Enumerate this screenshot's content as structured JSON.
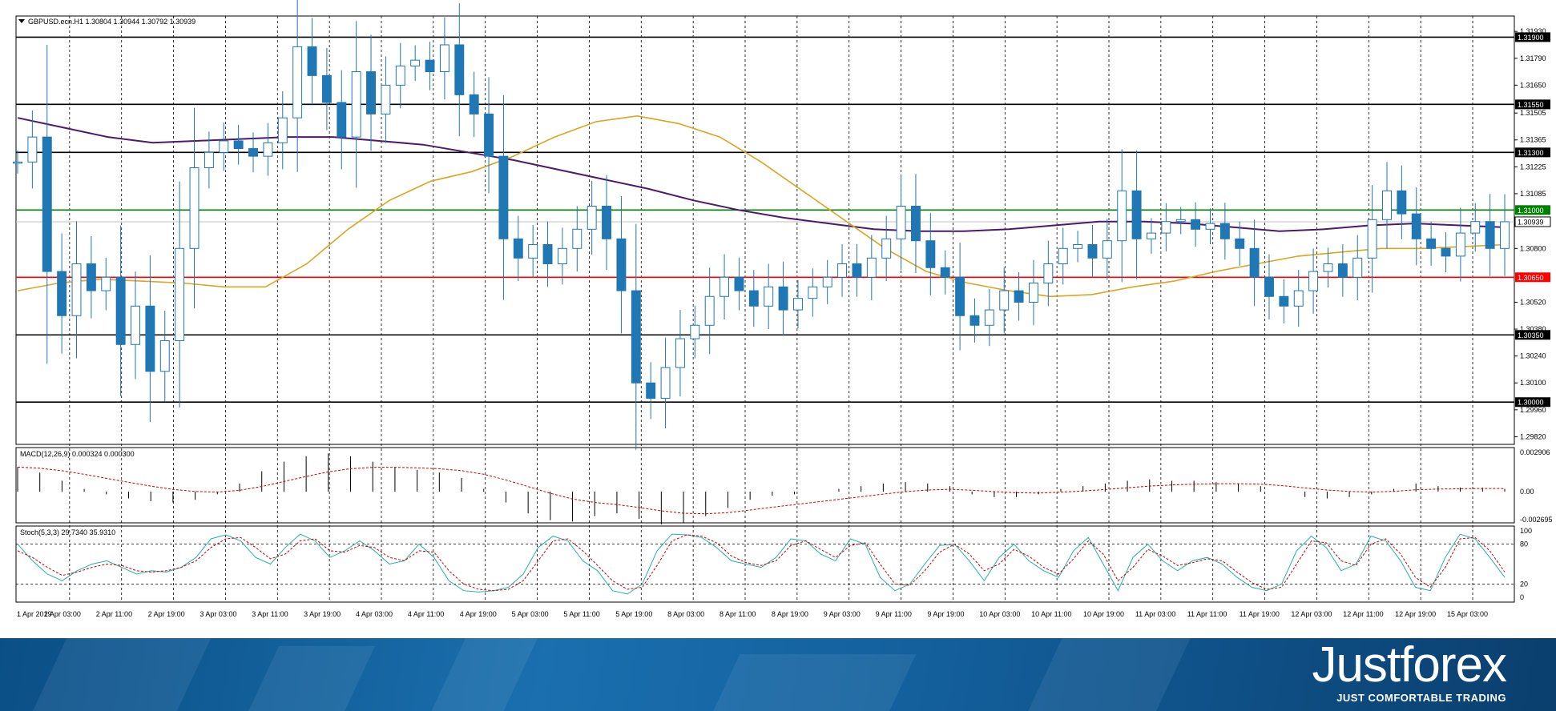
{
  "header": {
    "symbol_info": "GBPUSD.ecn.H1  1.30804 1.30944 1.30792 1.30939"
  },
  "macd": {
    "label": "MACD(12,26,9) 0.000324 0.000300",
    "axis": [
      "0.002906",
      "0.00",
      "-0.002695"
    ]
  },
  "stoch": {
    "label": "Stoch(5,3,3) 29.7340 35.9310",
    "axis": [
      "100",
      "80",
      "20",
      "0"
    ]
  },
  "brand": {
    "name": "Justforex",
    "tagline": "JUST COMFORTABLE TRADING"
  },
  "colors": {
    "bull": "#1f77b4",
    "ma_fast": "#daa520",
    "ma_slow": "#4b1a6b",
    "support": "#ff0000",
    "resistance_green": "#008000",
    "level": "#000000"
  },
  "chart_data": {
    "type": "candlestick",
    "symbol": "GBPUSD.ecn",
    "timeframe": "H1",
    "ohlc_last": {
      "open": 1.30804,
      "high": 1.30944,
      "low": 1.30792,
      "close": 1.30939
    },
    "x_tick_labels": [
      "1 Apr 2019",
      "2 Apr 03:00",
      "2 Apr 11:00",
      "2 Apr 19:00",
      "3 Apr 03:00",
      "3 Apr 11:00",
      "3 Apr 19:00",
      "4 Apr 03:00",
      "4 Apr 11:00",
      "4 Apr 19:00",
      "5 Apr 03:00",
      "5 Apr 11:00",
      "5 Apr 19:00",
      "8 Apr 03:00",
      "8 Apr 11:00",
      "8 Apr 19:00",
      "9 Apr 03:00",
      "9 Apr 11:00",
      "9 Apr 19:00",
      "10 Apr 03:00",
      "10 Apr 11:00",
      "10 Apr 19:00",
      "11 Apr 03:00",
      "11 Apr 11:00",
      "11 Apr 19:00",
      "12 Apr 03:00",
      "12 Apr 11:00",
      "12 Apr 19:00",
      "15 Apr 03:00"
    ],
    "y_tick_labels": [
      "1.31930",
      "1.31790",
      "1.31650",
      "1.31505",
      "1.31365",
      "1.31225",
      "1.31085",
      "1.30800",
      "1.30520",
      "1.30380",
      "1.30240",
      "1.30100",
      "1.29960",
      "1.29820"
    ],
    "ylim": [
      1.2978,
      1.3201
    ],
    "price_levels": [
      {
        "value": 1.319,
        "label": "1.31900",
        "color": "#000000"
      },
      {
        "value": 1.3155,
        "label": "1.31550",
        "color": "#000000"
      },
      {
        "value": 1.313,
        "label": "1.31300",
        "color": "#000000"
      },
      {
        "value": 1.31,
        "label": "1.31000",
        "color": "#008000"
      },
      {
        "value": 1.30939,
        "label": "1.30939",
        "color": "#c0c0c0"
      },
      {
        "value": 1.3065,
        "label": "1.30650",
        "color": "#ff0000"
      },
      {
        "value": 1.3035,
        "label": "1.30350",
        "color": "#000000"
      },
      {
        "value": 1.3,
        "label": "1.30000",
        "color": "#000000"
      }
    ],
    "close_path": [
      1.3125,
      1.3138,
      1.3068,
      1.3045,
      1.3072,
      1.3058,
      1.3065,
      1.303,
      1.305,
      1.3016,
      1.3032,
      1.308,
      1.3122,
      1.313,
      1.3136,
      1.3132,
      1.3128,
      1.3135,
      1.3148,
      1.3185,
      1.317,
      1.3156,
      1.3138,
      1.3172,
      1.315,
      1.3165,
      1.3175,
      1.3178,
      1.3172,
      1.3186,
      1.316,
      1.315,
      1.3128,
      1.3085,
      1.3075,
      1.3082,
      1.3072,
      1.308,
      1.309,
      1.3102,
      1.3085,
      1.3058,
      1.301,
      1.3002,
      1.3018,
      1.3033,
      1.304,
      1.3055,
      1.3065,
      1.3058,
      1.305,
      1.306,
      1.3048,
      1.3054,
      1.306,
      1.3065,
      1.3072,
      1.3065,
      1.3075,
      1.3085,
      1.3102,
      1.3084,
      1.307,
      1.3065,
      1.3045,
      1.304,
      1.3048,
      1.3058,
      1.3052,
      1.3062,
      1.3072,
      1.308,
      1.3082,
      1.3075,
      1.3084,
      1.311,
      1.3085,
      1.3088,
      1.3094,
      1.3095,
      1.309,
      1.3093,
      1.3085,
      1.308,
      1.3065,
      1.3055,
      1.305,
      1.3058,
      1.3068,
      1.3072,
      1.3065,
      1.3075,
      1.3095,
      1.311,
      1.3098,
      1.3085,
      1.308,
      1.3076,
      1.3088,
      1.3094,
      1.308,
      1.30939
    ],
    "ma_fast": [
      1.3058,
      1.3062,
      1.3064,
      1.3063,
      1.3062,
      1.306,
      1.306,
      1.3072,
      1.309,
      1.3105,
      1.3115,
      1.312,
      1.3128,
      1.3138,
      1.3146,
      1.3149,
      1.3145,
      1.3138,
      1.3125,
      1.311,
      1.3095,
      1.308,
      1.3068,
      1.3062,
      1.3058,
      1.3055,
      1.3056,
      1.306,
      1.3063,
      1.3068,
      1.3072,
      1.3076,
      1.3078,
      1.308,
      1.308,
      1.3081,
      1.3082
    ],
    "ma_slow": [
      1.3148,
      1.3143,
      1.3138,
      1.3135,
      1.3136,
      1.3137,
      1.3138,
      1.3138,
      1.3136,
      1.3134,
      1.313,
      1.3126,
      1.3121,
      1.3116,
      1.3111,
      1.3105,
      1.31,
      1.3096,
      1.3093,
      1.309,
      1.3089,
      1.3089,
      1.309,
      1.3092,
      1.3094,
      1.3094,
      1.3093,
      1.3091,
      1.3089,
      1.309,
      1.3092,
      1.3093,
      1.3092,
      1.3091
    ],
    "macd_histogram": [
      0.0018,
      0.0014,
      0.0008,
      0.0002,
      -0.0002,
      -0.0005,
      -0.0007,
      -0.0008,
      -0.0006,
      -0.0002,
      0.0006,
      0.0015,
      0.0022,
      0.0026,
      0.0028,
      0.0026,
      0.0022,
      0.0018,
      0.0016,
      0.0014,
      0.001,
      0.0002,
      -0.0008,
      -0.0016,
      -0.0021,
      -0.0022,
      -0.0018,
      -0.0016,
      -0.002,
      -0.0024,
      -0.0023,
      -0.0018,
      -0.0012,
      -0.0006,
      -0.0003,
      -0.0002,
      0.0,
      0.0002,
      0.0004,
      0.0006,
      0.0007,
      0.0006,
      0.0004,
      -0.0002,
      -0.0004,
      -0.0004,
      -0.0002,
      0.0002,
      0.0004,
      0.0006,
      0.0008,
      0.0009,
      0.0008,
      0.0008,
      0.0007,
      0.0006,
      0.0004,
      0.0,
      -0.0004,
      -0.0005,
      -0.0004,
      -0.0002,
      0.0002,
      0.0006,
      0.0004,
      0.0003,
      0.0003,
      0.0002
    ],
    "stoch_k": [
      80,
      55,
      35,
      25,
      40,
      50,
      55,
      45,
      35,
      40,
      38,
      45,
      60,
      88,
      94,
      85,
      60,
      50,
      75,
      95,
      85,
      60,
      70,
      85,
      70,
      50,
      55,
      80,
      60,
      25,
      10,
      8,
      10,
      15,
      35,
      75,
      92,
      85,
      55,
      40,
      10,
      5,
      20,
      70,
      95,
      94,
      90,
      75,
      55,
      50,
      45,
      60,
      88,
      85,
      65,
      55,
      88,
      80,
      30,
      10,
      20,
      50,
      78,
      80,
      55,
      25,
      60,
      80,
      55,
      40,
      30,
      70,
      90,
      50,
      10,
      60,
      80,
      55,
      40,
      55,
      60,
      50,
      30,
      15,
      10,
      20,
      70,
      92,
      75,
      40,
      50,
      92,
      85,
      55,
      15,
      10,
      60,
      95,
      88,
      60,
      30
    ],
    "stoch_d": [
      70,
      60,
      45,
      33,
      38,
      45,
      50,
      48,
      40,
      38,
      40,
      45,
      55,
      75,
      88,
      90,
      75,
      58,
      65,
      85,
      88,
      70,
      68,
      78,
      75,
      60,
      55,
      70,
      68,
      40,
      20,
      12,
      10,
      12,
      25,
      55,
      85,
      88,
      70,
      48,
      25,
      12,
      15,
      48,
      85,
      94,
      92,
      82,
      62,
      52,
      48,
      55,
      78,
      85,
      72,
      60,
      78,
      82,
      50,
      20,
      18,
      40,
      68,
      80,
      65,
      40,
      50,
      72,
      62,
      45,
      35,
      58,
      85,
      65,
      25,
      45,
      72,
      62,
      48,
      52,
      58,
      55,
      38,
      22,
      12,
      15,
      50,
      85,
      82,
      55,
      48,
      80,
      88,
      65,
      30,
      15,
      45,
      88,
      90,
      70,
      38
    ]
  }
}
